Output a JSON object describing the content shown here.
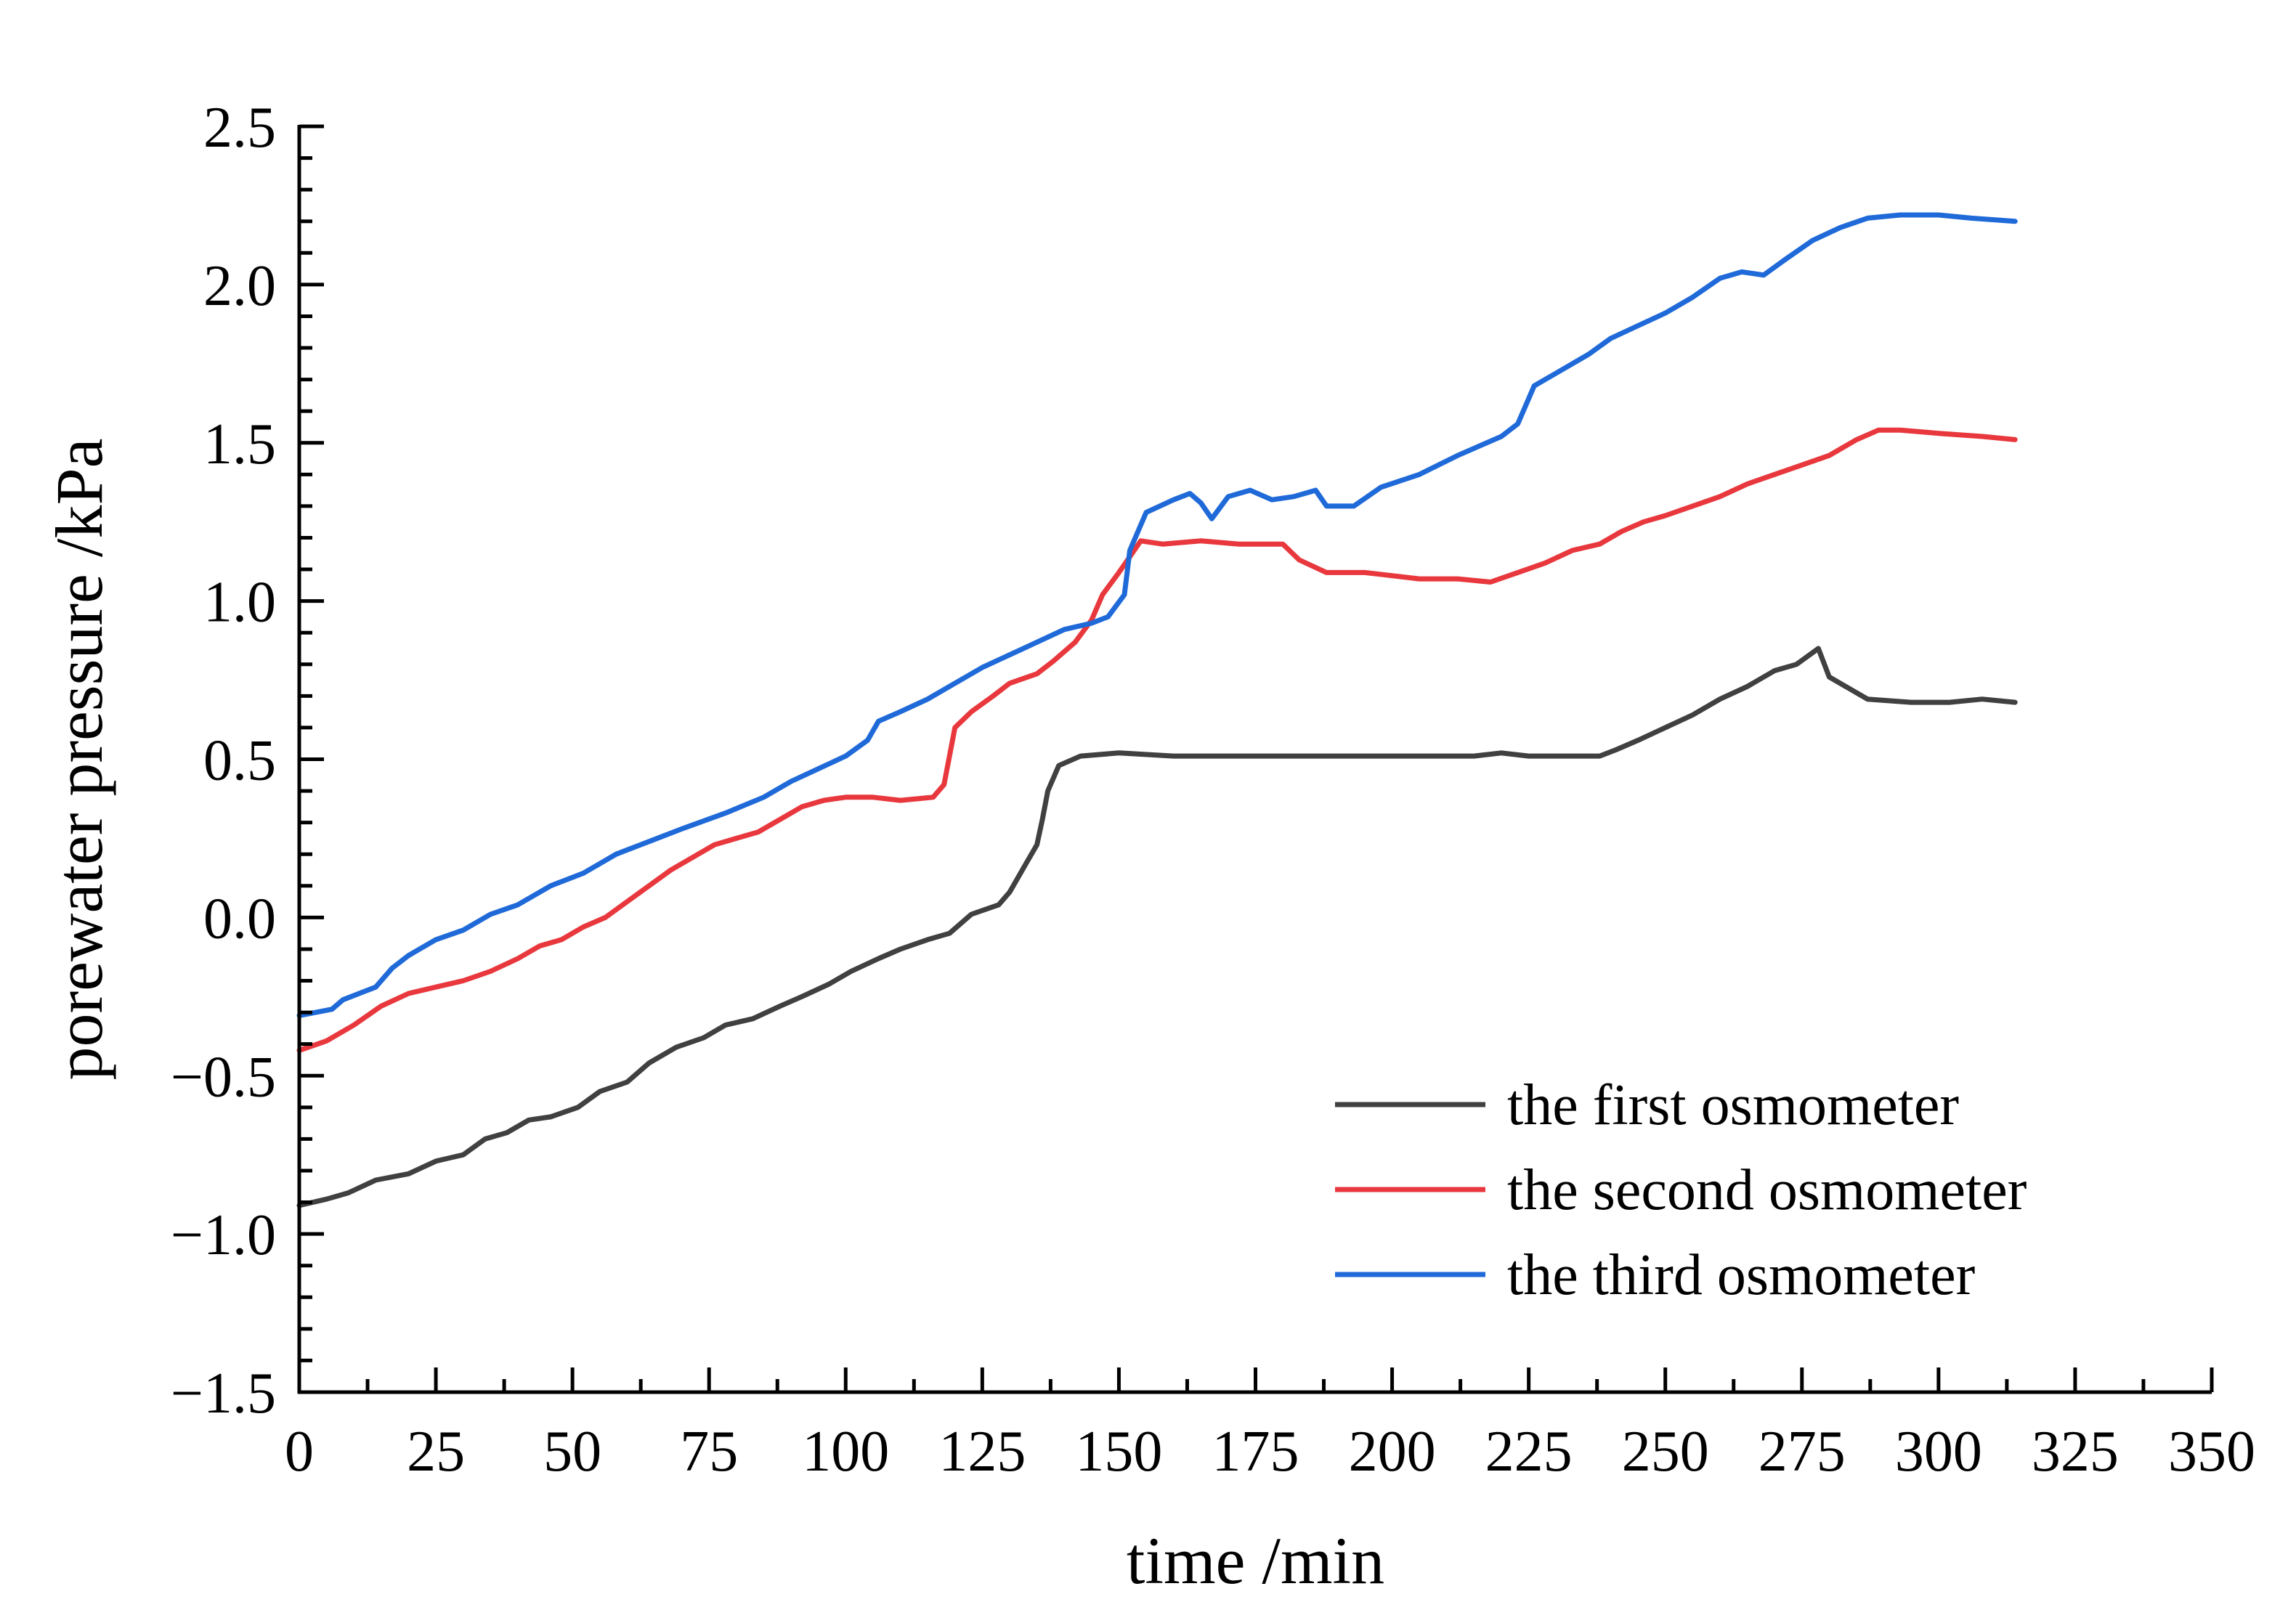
{
  "chart_data": {
    "type": "line",
    "xlabel": "time /min",
    "ylabel": "porewater pressure /kPa",
    "xlim": [
      0,
      350
    ],
    "ylim": [
      -1.5,
      2.5
    ],
    "x_ticks": [
      0,
      25,
      50,
      75,
      100,
      125,
      150,
      175,
      200,
      225,
      250,
      275,
      300,
      325,
      350
    ],
    "x_tick_labels": [
      "0",
      "25",
      "50",
      "75",
      "100",
      "125",
      "150",
      "175",
      "200",
      "225",
      "250",
      "275",
      "300",
      "325",
      "350"
    ],
    "y_ticks": [
      -1.5,
      -1.0,
      -0.5,
      0.0,
      0.5,
      1.0,
      1.5,
      2.0,
      2.5
    ],
    "y_tick_labels": [
      "−1.5",
      "−1.0",
      "−0.5",
      "0.0",
      "0.5",
      "1.0",
      "1.5",
      "2.0",
      "2.5"
    ],
    "grid": false,
    "legend_position": "bottom-right",
    "series": [
      {
        "name": "the first osmometer",
        "color": "#404040",
        "points": [
          [
            0,
            -0.91
          ],
          [
            5,
            -0.89
          ],
          [
            9,
            -0.87
          ],
          [
            14,
            -0.83
          ],
          [
            20,
            -0.81
          ],
          [
            25,
            -0.77
          ],
          [
            30,
            -0.75
          ],
          [
            34,
            -0.7
          ],
          [
            38,
            -0.68
          ],
          [
            42,
            -0.64
          ],
          [
            46,
            -0.63
          ],
          [
            51,
            -0.6
          ],
          [
            55,
            -0.55
          ],
          [
            60,
            -0.52
          ],
          [
            64,
            -0.46
          ],
          [
            69,
            -0.41
          ],
          [
            74,
            -0.38
          ],
          [
            78,
            -0.34
          ],
          [
            83,
            -0.32
          ],
          [
            88,
            -0.28
          ],
          [
            92,
            -0.25
          ],
          [
            97,
            -0.21
          ],
          [
            101,
            -0.17
          ],
          [
            106,
            -0.13
          ],
          [
            110,
            -0.1
          ],
          [
            115,
            -0.07
          ],
          [
            119,
            -0.05
          ],
          [
            123,
            0.01
          ],
          [
            128,
            0.04
          ],
          [
            130,
            0.08
          ],
          [
            133,
            0.17
          ],
          [
            135,
            0.23
          ],
          [
            136,
            0.31
          ],
          [
            137,
            0.4
          ],
          [
            139,
            0.48
          ],
          [
            143,
            0.51
          ],
          [
            150,
            0.52
          ],
          [
            160,
            0.51
          ],
          [
            170,
            0.51
          ],
          [
            180,
            0.51
          ],
          [
            190,
            0.51
          ],
          [
            200,
            0.51
          ],
          [
            210,
            0.51
          ],
          [
            215,
            0.51
          ],
          [
            220,
            0.52
          ],
          [
            225,
            0.51
          ],
          [
            230,
            0.51
          ],
          [
            235,
            0.51
          ],
          [
            238,
            0.51
          ],
          [
            241,
            0.53
          ],
          [
            245,
            0.56
          ],
          [
            250,
            0.6
          ],
          [
            255,
            0.64
          ],
          [
            260,
            0.69
          ],
          [
            265,
            0.73
          ],
          [
            270,
            0.78
          ],
          [
            274,
            0.8
          ],
          [
            278,
            0.85
          ],
          [
            280,
            0.76
          ],
          [
            283,
            0.73
          ],
          [
            287,
            0.69
          ],
          [
            295,
            0.68
          ],
          [
            302,
            0.68
          ],
          [
            308,
            0.69
          ],
          [
            314,
            0.68
          ]
        ]
      },
      {
        "name": "the second osmometer",
        "color": "#e8383d",
        "points": [
          [
            0,
            -0.42
          ],
          [
            5,
            -0.39
          ],
          [
            10,
            -0.34
          ],
          [
            15,
            -0.28
          ],
          [
            20,
            -0.24
          ],
          [
            25,
            -0.22
          ],
          [
            30,
            -0.2
          ],
          [
            35,
            -0.17
          ],
          [
            40,
            -0.13
          ],
          [
            44,
            -0.09
          ],
          [
            48,
            -0.07
          ],
          [
            52,
            -0.03
          ],
          [
            56,
            0.0
          ],
          [
            60,
            0.05
          ],
          [
            64,
            0.1
          ],
          [
            68,
            0.15
          ],
          [
            72,
            0.19
          ],
          [
            76,
            0.23
          ],
          [
            80,
            0.25
          ],
          [
            84,
            0.27
          ],
          [
            88,
            0.31
          ],
          [
            92,
            0.35
          ],
          [
            96,
            0.37
          ],
          [
            100,
            0.38
          ],
          [
            105,
            0.38
          ],
          [
            110,
            0.37
          ],
          [
            116,
            0.38
          ],
          [
            118,
            0.42
          ],
          [
            120,
            0.6
          ],
          [
            123,
            0.65
          ],
          [
            127,
            0.7
          ],
          [
            130,
            0.74
          ],
          [
            135,
            0.77
          ],
          [
            138,
            0.81
          ],
          [
            142,
            0.87
          ],
          [
            145,
            0.94
          ],
          [
            147,
            1.02
          ],
          [
            150,
            1.09
          ],
          [
            152,
            1.14
          ],
          [
            154,
            1.19
          ],
          [
            158,
            1.18
          ],
          [
            165,
            1.19
          ],
          [
            172,
            1.18
          ],
          [
            180,
            1.18
          ],
          [
            183,
            1.13
          ],
          [
            188,
            1.09
          ],
          [
            195,
            1.09
          ],
          [
            205,
            1.07
          ],
          [
            212,
            1.07
          ],
          [
            218,
            1.06
          ],
          [
            223,
            1.09
          ],
          [
            228,
            1.12
          ],
          [
            233,
            1.16
          ],
          [
            238,
            1.18
          ],
          [
            242,
            1.22
          ],
          [
            246,
            1.25
          ],
          [
            250,
            1.27
          ],
          [
            255,
            1.3
          ],
          [
            260,
            1.33
          ],
          [
            265,
            1.37
          ],
          [
            270,
            1.4
          ],
          [
            275,
            1.43
          ],
          [
            280,
            1.46
          ],
          [
            285,
            1.51
          ],
          [
            289,
            1.54
          ],
          [
            293,
            1.54
          ],
          [
            300,
            1.53
          ],
          [
            308,
            1.52
          ],
          [
            314,
            1.51
          ]
        ]
      },
      {
        "name": "the third osmometer",
        "color": "#1f6ad8",
        "points": [
          [
            0,
            -0.31
          ],
          [
            6,
            -0.29
          ],
          [
            8,
            -0.26
          ],
          [
            14,
            -0.22
          ],
          [
            17,
            -0.16
          ],
          [
            20,
            -0.12
          ],
          [
            25,
            -0.07
          ],
          [
            30,
            -0.04
          ],
          [
            35,
            0.01
          ],
          [
            40,
            0.04
          ],
          [
            46,
            0.1
          ],
          [
            52,
            0.14
          ],
          [
            58,
            0.2
          ],
          [
            64,
            0.24
          ],
          [
            70,
            0.28
          ],
          [
            78,
            0.33
          ],
          [
            85,
            0.38
          ],
          [
            90,
            0.43
          ],
          [
            95,
            0.47
          ],
          [
            100,
            0.51
          ],
          [
            104,
            0.56
          ],
          [
            106,
            0.62
          ],
          [
            110,
            0.65
          ],
          [
            115,
            0.69
          ],
          [
            120,
            0.74
          ],
          [
            125,
            0.79
          ],
          [
            130,
            0.83
          ],
          [
            135,
            0.87
          ],
          [
            140,
            0.91
          ],
          [
            145,
            0.93
          ],
          [
            148,
            0.95
          ],
          [
            151,
            1.02
          ],
          [
            152,
            1.16
          ],
          [
            155,
            1.28
          ],
          [
            160,
            1.32
          ],
          [
            163,
            1.34
          ],
          [
            165,
            1.31
          ],
          [
            167,
            1.26
          ],
          [
            170,
            1.33
          ],
          [
            174,
            1.35
          ],
          [
            178,
            1.32
          ],
          [
            182,
            1.33
          ],
          [
            186,
            1.35
          ],
          [
            188,
            1.3
          ],
          [
            193,
            1.3
          ],
          [
            198,
            1.36
          ],
          [
            205,
            1.4
          ],
          [
            212,
            1.46
          ],
          [
            220,
            1.52
          ],
          [
            223,
            1.56
          ],
          [
            226,
            1.68
          ],
          [
            230,
            1.72
          ],
          [
            236,
            1.78
          ],
          [
            240,
            1.83
          ],
          [
            245,
            1.87
          ],
          [
            250,
            1.91
          ],
          [
            255,
            1.96
          ],
          [
            260,
            2.02
          ],
          [
            264,
            2.04
          ],
          [
            268,
            2.03
          ],
          [
            272,
            2.08
          ],
          [
            277,
            2.14
          ],
          [
            282,
            2.18
          ],
          [
            287,
            2.21
          ],
          [
            293,
            2.22
          ],
          [
            300,
            2.22
          ],
          [
            306,
            2.21
          ],
          [
            314,
            2.2
          ]
        ]
      }
    ]
  }
}
